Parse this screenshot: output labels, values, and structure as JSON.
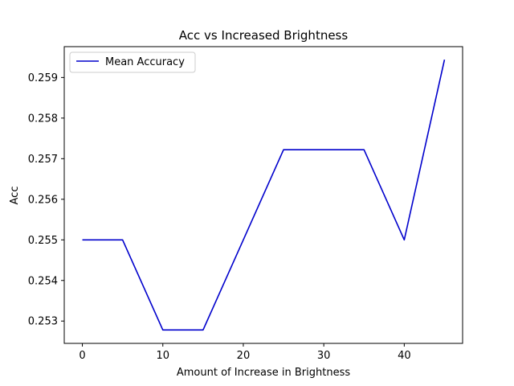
{
  "chart_data": {
    "type": "line",
    "title": "Acc vs Increased Brightness",
    "xlabel": "Amount of Increase in Brightness",
    "ylabel": "Acc",
    "xlim": [
      -2.25,
      47.25
    ],
    "ylim": [
      0.25245,
      0.25976
    ],
    "x_ticks": [
      0,
      10,
      20,
      30,
      40
    ],
    "y_ticks": [
      0.253,
      0.254,
      0.255,
      0.256,
      0.257,
      0.258,
      0.259
    ],
    "x_tick_labels": [
      "0",
      "10",
      "20",
      "30",
      "40"
    ],
    "y_tick_labels": [
      "0.253",
      "0.254",
      "0.255",
      "0.256",
      "0.257",
      "0.258",
      "0.259"
    ],
    "grid": false,
    "legend": "upper-left",
    "series": [
      {
        "name": "Mean Accuracy",
        "color": "#0000cc",
        "x": [
          0,
          5,
          10,
          15,
          20,
          25,
          30,
          35,
          40,
          45
        ],
        "y": [
          0.255,
          0.255,
          0.25278,
          0.25278,
          0.255,
          0.25722,
          0.25722,
          0.25722,
          0.255,
          0.25944
        ]
      }
    ]
  }
}
